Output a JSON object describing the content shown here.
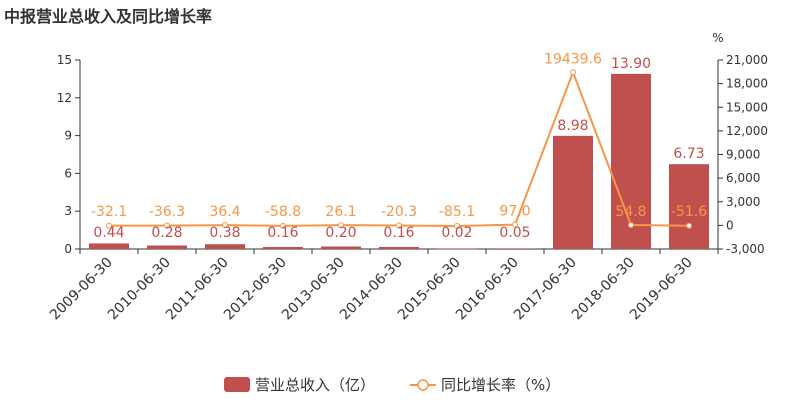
{
  "title": "中报营业总收入及同比增长率",
  "chart_data": {
    "type": "bar",
    "categories": [
      "2009-06-30",
      "2010-06-30",
      "2011-06-30",
      "2012-06-30",
      "2013-06-30",
      "2014-06-30",
      "2015-06-30",
      "2016-06-30",
      "2017-06-30",
      "2018-06-30",
      "2019-06-30"
    ],
    "series": [
      {
        "name": "营业总收入（亿）",
        "type": "bar",
        "axis": "left",
        "values": [
          0.44,
          0.28,
          0.38,
          0.16,
          0.2,
          0.16,
          0.02,
          0.05,
          8.98,
          13.9,
          6.73
        ],
        "labels": [
          "0.44",
          "0.28",
          "0.38",
          "0.16",
          "0.20",
          "0.16",
          "0.02",
          "0.05",
          "8.98",
          "13.90",
          "6.73"
        ],
        "color": "#c0504d"
      },
      {
        "name": "同比增长率（%）",
        "type": "line",
        "axis": "right",
        "values": [
          -32.1,
          -36.3,
          36.4,
          -58.8,
          26.1,
          -20.3,
          -85.1,
          97.0,
          19439.6,
          54.8,
          -51.6
        ],
        "labels": [
          "-32.1",
          "-36.3",
          "36.4",
          "-58.8",
          "26.1",
          "-20.3",
          "-85.1",
          "97.0",
          "19439.6",
          "54.8",
          "-51.6"
        ],
        "color": "#f79646"
      }
    ],
    "y_left": {
      "ylim": [
        0,
        15
      ],
      "ticks": [
        "0",
        "3",
        "6",
        "9",
        "12",
        "15"
      ]
    },
    "y_right": {
      "ylim": [
        -3000,
        21000
      ],
      "unit": "%",
      "ticks": [
        "-3,000",
        "0",
        "3,000",
        "6,000",
        "9,000",
        "12,000",
        "15,000",
        "18,000",
        "21,000"
      ]
    },
    "legend_position": "bottom-center",
    "grid": false
  }
}
